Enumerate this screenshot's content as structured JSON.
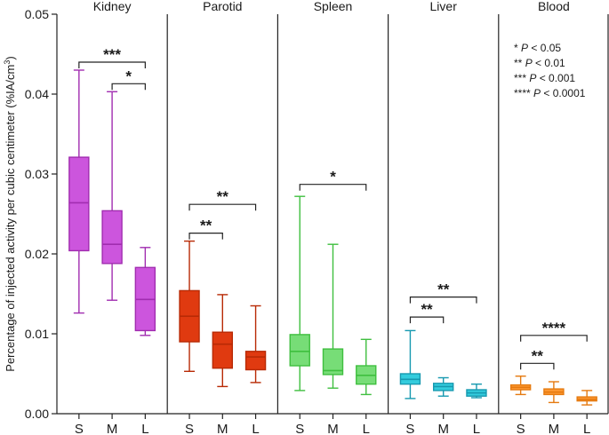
{
  "chart_data": {
    "type": "box",
    "ylabel": "Percentage of injected activity per cubic centimeter (%IA/cm³)",
    "ylabel_main": "Percentage of injected activity per cubic centimeter (%IA/cm",
    "ylabel_sup": "3",
    "ylabel_end": ")",
    "ylim": [
      0,
      0.05
    ],
    "y_ticks": [
      {
        "value": 0,
        "label": "0.00"
      },
      {
        "value": 0.01,
        "label": "0.01"
      },
      {
        "value": 0.02,
        "label": "0.02"
      },
      {
        "value": 0.03,
        "label": "0.03"
      },
      {
        "value": 0.04,
        "label": "0.04"
      },
      {
        "value": 0.05,
        "label": "0.05"
      }
    ],
    "categories": [
      "S",
      "M",
      "L"
    ],
    "panels": [
      {
        "name": "Kidney",
        "color": "#cc55dd",
        "stroke": "#a12db0",
        "boxes": [
          {
            "min": 0.0126,
            "q1": 0.0204,
            "median": 0.0264,
            "q3": 0.0321,
            "max": 0.043
          },
          {
            "min": 0.0142,
            "q1": 0.0188,
            "median": 0.0212,
            "q3": 0.0254,
            "max": 0.0403
          },
          {
            "min": 0.0098,
            "q1": 0.0104,
            "median": 0.0143,
            "q3": 0.0183,
            "max": 0.0208
          }
        ],
        "sig": [
          {
            "from": 0,
            "to": 2,
            "y": 0.044,
            "label": "***"
          },
          {
            "from": 1,
            "to": 2,
            "y": 0.0413,
            "label": "*"
          }
        ]
      },
      {
        "name": "Parotid",
        "color": "#e03a10",
        "stroke": "#b82a05",
        "boxes": [
          {
            "min": 0.0053,
            "q1": 0.009,
            "median": 0.0122,
            "q3": 0.0154,
            "max": 0.0216
          },
          {
            "min": 0.0034,
            "q1": 0.0057,
            "median": 0.0087,
            "q3": 0.0102,
            "max": 0.0149
          },
          {
            "min": 0.0039,
            "q1": 0.0055,
            "median": 0.0071,
            "q3": 0.0078,
            "max": 0.0135
          }
        ],
        "sig": [
          {
            "from": 0,
            "to": 2,
            "y": 0.0262,
            "label": "**"
          },
          {
            "from": 0,
            "to": 1,
            "y": 0.0226,
            "label": "**"
          }
        ]
      },
      {
        "name": "Spleen",
        "color": "#77dd77",
        "stroke": "#3fbf3f",
        "boxes": [
          {
            "min": 0.0029,
            "q1": 0.006,
            "median": 0.0078,
            "q3": 0.0099,
            "max": 0.0272
          },
          {
            "min": 0.0032,
            "q1": 0.0049,
            "median": 0.0054,
            "q3": 0.0081,
            "max": 0.0212
          },
          {
            "min": 0.0024,
            "q1": 0.0037,
            "median": 0.0048,
            "q3": 0.006,
            "max": 0.0093
          }
        ],
        "sig": [
          {
            "from": 0,
            "to": 2,
            "y": 0.0287,
            "label": "*"
          }
        ]
      },
      {
        "name": "Liver",
        "color": "#33ccdd",
        "stroke": "#1799b0",
        "boxes": [
          {
            "min": 0.0019,
            "q1": 0.0037,
            "median": 0.0043,
            "q3": 0.005,
            "max": 0.0104
          },
          {
            "min": 0.0022,
            "q1": 0.0029,
            "median": 0.0034,
            "q3": 0.0038,
            "max": 0.0045
          },
          {
            "min": 0.002,
            "q1": 0.0022,
            "median": 0.0026,
            "q3": 0.003,
            "max": 0.0037
          }
        ],
        "sig": [
          {
            "from": 0,
            "to": 2,
            "y": 0.0146,
            "label": "**"
          },
          {
            "from": 0,
            "to": 1,
            "y": 0.0121,
            "label": "**"
          }
        ]
      },
      {
        "name": "Blood",
        "color": "#ff9933",
        "stroke": "#e57a10",
        "boxes": [
          {
            "min": 0.0024,
            "q1": 0.003,
            "median": 0.0033,
            "q3": 0.0036,
            "max": 0.0047
          },
          {
            "min": 0.0014,
            "q1": 0.0024,
            "median": 0.0027,
            "q3": 0.0031,
            "max": 0.004
          },
          {
            "min": 0.0011,
            "q1": 0.0016,
            "median": 0.0018,
            "q3": 0.0021,
            "max": 0.0029
          }
        ],
        "sig": [
          {
            "from": 0,
            "to": 2,
            "y": 0.0098,
            "label": "****"
          },
          {
            "from": 0,
            "to": 1,
            "y": 0.0063,
            "label": "**"
          }
        ]
      }
    ],
    "legend": [
      {
        "stars": "*",
        "rest": " < 0.05"
      },
      {
        "stars": "**",
        "rest": " < 0.01"
      },
      {
        "stars": "***",
        "rest": " < 0.001"
      },
      {
        "stars": "****",
        "rest": " < 0.0001"
      }
    ],
    "legend_p": "P"
  }
}
